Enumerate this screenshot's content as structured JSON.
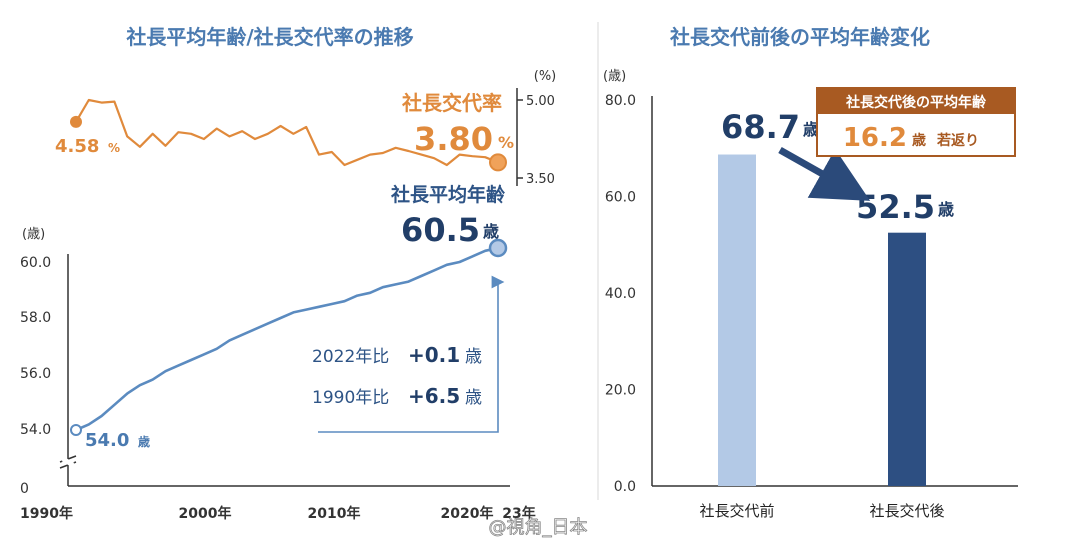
{
  "left_panel": {
    "title": "社長平均年齢/社長交代率の推移",
    "rate_unit": "(%)",
    "rate_series_label": "社長交代率",
    "rate_start_value": "4.58",
    "rate_start_unit": "%",
    "rate_end_value": "3.80",
    "rate_end_unit": "%",
    "age_series_label": "社長平均年齢",
    "age_end_value": "60.5",
    "age_end_unit": "歳",
    "age_start_value": "54.0",
    "age_start_unit": "歳",
    "age_unit": "(歳)",
    "cmp_2022_prefix": "2022年比",
    "cmp_2022_value": "+0.1",
    "cmp_2022_unit": "歳",
    "cmp_1990_prefix": "1990年比",
    "cmp_1990_value": "+6.5",
    "cmp_1990_unit": "歳"
  },
  "right_panel": {
    "title": "社長交代前後の平均年齢変化",
    "y_unit": "(歳)",
    "before_value": "68.7",
    "after_value": "52.5",
    "value_unit": "歳",
    "box_title": "社長交代後の平均年齢",
    "box_value": "16.2",
    "box_unit": "歳",
    "box_suffix": "若返り"
  },
  "watermark": "@視角_日本",
  "colors": {
    "rate": "#e08a3c",
    "age": "#5b8bc0",
    "title": "#4a7ab0",
    "navy": "#213e68",
    "bar_before": "#b3c9e6",
    "bar_after": "#2d4f82",
    "box_header": "#a85a22"
  },
  "chart_data": [
    {
      "type": "line",
      "x": [
        1990,
        1991,
        1992,
        1993,
        1994,
        1995,
        1996,
        1997,
        1998,
        1999,
        2000,
        2001,
        2002,
        2003,
        2004,
        2005,
        2006,
        2007,
        2008,
        2009,
        2010,
        2011,
        2012,
        2013,
        2014,
        2015,
        2016,
        2017,
        2018,
        2019,
        2020,
        2021,
        2022,
        2023
      ],
      "series": [
        {
          "name": "社長交代率",
          "unit": "%",
          "values": [
            4.58,
            5.0,
            4.95,
            4.97,
            4.3,
            4.1,
            4.35,
            4.12,
            4.38,
            4.35,
            4.25,
            4.45,
            4.3,
            4.4,
            4.25,
            4.35,
            4.5,
            4.35,
            4.48,
            3.95,
            4.0,
            3.75,
            3.85,
            3.95,
            3.98,
            4.08,
            4.02,
            3.95,
            3.88,
            3.75,
            3.95,
            3.92,
            3.9,
            3.8
          ]
        },
        {
          "name": "社長平均年齢",
          "unit": "歳",
          "values": [
            54.0,
            54.2,
            54.5,
            54.9,
            55.3,
            55.6,
            55.8,
            56.1,
            56.3,
            56.5,
            56.7,
            56.9,
            57.2,
            57.4,
            57.6,
            57.8,
            58.0,
            58.2,
            58.3,
            58.4,
            58.5,
            58.6,
            58.8,
            58.9,
            59.1,
            59.2,
            59.3,
            59.5,
            59.7,
            59.9,
            60.0,
            60.2,
            60.4,
            60.5
          ]
        }
      ],
      "rate_ticks": [
        "5.00",
        "3.50"
      ],
      "age_ticks": [
        "60.0",
        "58.0",
        "56.0",
        "54.0",
        "0"
      ],
      "x_tick_labels": [
        "1990年",
        "2000年",
        "2010年",
        "2020年",
        "23年"
      ],
      "age_ylim": [
        54.0,
        60.5
      ]
    },
    {
      "type": "bar",
      "categories": [
        "社長交代前",
        "社長交代後"
      ],
      "values": [
        68.7,
        52.5
      ],
      "y_ticks": [
        "80.0",
        "60.0",
        "40.0",
        "20.0",
        "0.0"
      ],
      "ylim": [
        0,
        80
      ]
    }
  ]
}
